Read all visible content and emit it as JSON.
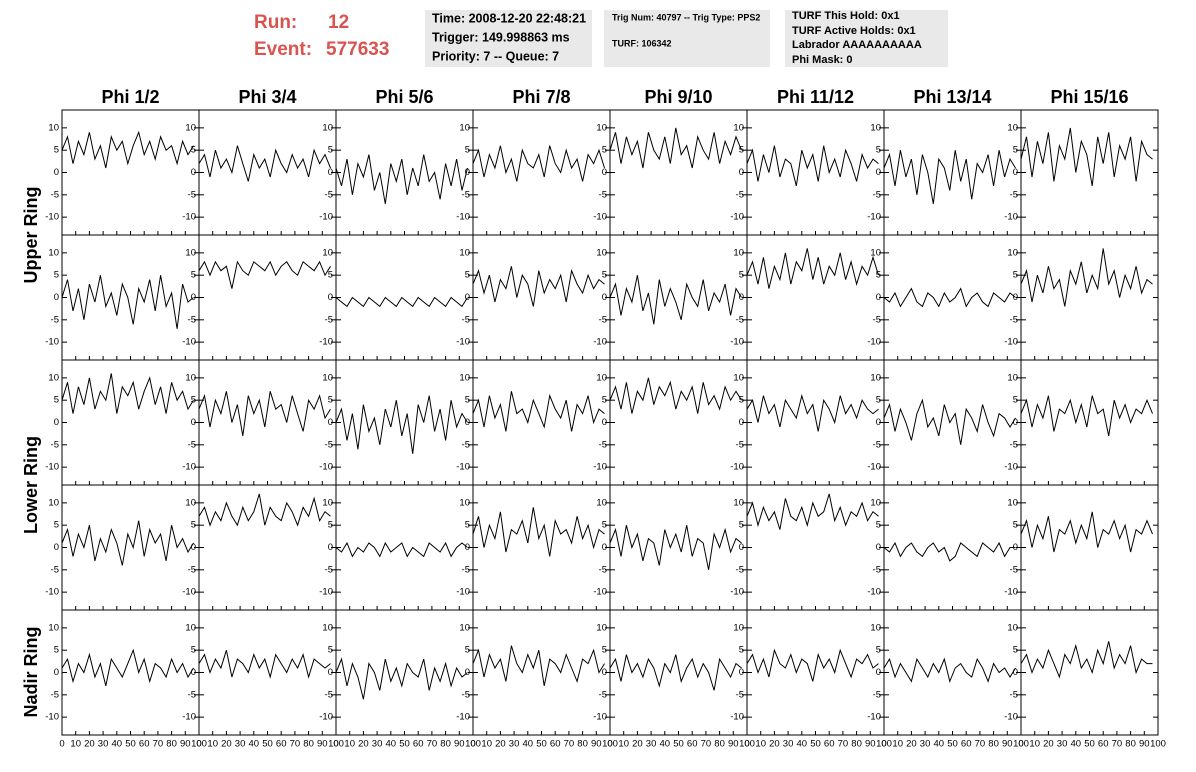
{
  "header": {
    "run_label": "Run:",
    "run": "12",
    "event_label": "Event:",
    "event": "577633",
    "time": "Time: 2008-12-20 22:48:21",
    "trigger": "Trigger: 149.998863 ms",
    "priority": "Priority: 7 -- Queue: 7",
    "trig_num": "Trig Num: 40797 -- Trig Type: PPS2",
    "turf": "TURF: 106342",
    "turf_this_hold": "TURF This Hold: 0x1",
    "turf_active_holds": "TURF Active Holds: 0x1",
    "labrador": "Labrador AAAAAAAAAA",
    "phi_mask": "Phi Mask: 0"
  },
  "grid": {
    "type": "line",
    "columns": [
      "Phi 1/2",
      "Phi 3/4",
      "Phi 5/6",
      "Phi 7/8",
      "Phi 9/10",
      "Phi 11/12",
      "Phi 13/14",
      "Phi 15/16"
    ],
    "ring_labels": [
      "Upper Ring",
      "Lower Ring",
      "Nadir Ring"
    ],
    "x": [
      0,
      4,
      8,
      12,
      16,
      20,
      24,
      28,
      32,
      36,
      40,
      44,
      48,
      52,
      56,
      60,
      64,
      68,
      72,
      76,
      80,
      84,
      88,
      92,
      96
    ],
    "xlim": [
      0,
      100
    ],
    "ylim": [
      -14,
      14
    ],
    "xticks": [
      0,
      10,
      20,
      30,
      40,
      50,
      60,
      70,
      80,
      90,
      100
    ],
    "yticks": [
      -10,
      -5,
      0,
      5,
      10
    ],
    "panels": [
      [
        [
          5,
          8,
          2,
          7,
          4,
          9,
          3,
          6,
          1,
          8,
          5,
          7,
          2,
          6,
          9,
          4,
          7,
          3,
          8,
          5,
          6,
          2,
          7,
          4,
          6
        ],
        [
          2,
          4,
          -1,
          5,
          1,
          3,
          0,
          6,
          2,
          -2,
          4,
          1,
          3,
          -1,
          5,
          2,
          0,
          4,
          1,
          3,
          -1,
          5,
          2,
          4,
          1
        ],
        [
          1,
          -3,
          3,
          -5,
          2,
          -1,
          4,
          -4,
          0,
          -7,
          2,
          -2,
          3,
          -5,
          1,
          -3,
          4,
          -2,
          0,
          -6,
          2,
          -3,
          3,
          -4,
          1
        ],
        [
          2,
          5,
          -1,
          4,
          1,
          6,
          0,
          3,
          -2,
          5,
          2,
          1,
          4,
          -1,
          6,
          2,
          0,
          5,
          1,
          3,
          -2,
          4,
          2,
          5,
          1
        ],
        [
          5,
          9,
          2,
          8,
          4,
          7,
          1,
          9,
          5,
          3,
          8,
          2,
          10,
          4,
          6,
          1,
          8,
          5,
          3,
          9,
          2,
          7,
          4,
          8,
          5
        ],
        [
          2,
          5,
          -2,
          4,
          0,
          6,
          -1,
          3,
          2,
          -3,
          5,
          1,
          4,
          -2,
          6,
          0,
          3,
          -1,
          5,
          2,
          -2,
          4,
          1,
          3,
          2
        ],
        [
          1,
          4,
          -3,
          5,
          -1,
          3,
          -5,
          4,
          0,
          -7,
          3,
          1,
          -4,
          5,
          -2,
          3,
          -6,
          2,
          0,
          4,
          -3,
          5,
          -1,
          3,
          1
        ],
        [
          3,
          8,
          -1,
          7,
          2,
          9,
          -2,
          6,
          3,
          10,
          0,
          7,
          4,
          -3,
          8,
          2,
          9,
          -1,
          6,
          3,
          8,
          -2,
          7,
          4,
          3
        ]
      ],
      [
        [
          0,
          4,
          -3,
          2,
          -5,
          3,
          -1,
          5,
          -2,
          1,
          -4,
          3,
          0,
          -6,
          2,
          -1,
          4,
          -3,
          5,
          -2,
          1,
          -7,
          3,
          -1,
          0
        ],
        [
          6,
          8,
          5,
          8,
          6,
          7,
          2,
          8,
          6,
          5,
          8,
          7,
          6,
          8,
          5,
          7,
          8,
          6,
          5,
          8,
          7,
          6,
          8,
          5,
          7
        ],
        [
          0,
          -1,
          -2,
          0,
          -1,
          -2,
          0,
          -1,
          -2,
          0,
          -1,
          -2,
          0,
          -1,
          -2,
          0,
          -1,
          -2,
          0,
          -1,
          -2,
          0,
          -1,
          -2,
          0
        ],
        [
          3,
          6,
          1,
          5,
          -1,
          4,
          2,
          7,
          0,
          5,
          3,
          -2,
          6,
          1,
          4,
          2,
          5,
          -1,
          6,
          3,
          1,
          5,
          2,
          4,
          3
        ],
        [
          0,
          3,
          -4,
          2,
          -1,
          5,
          -3,
          1,
          -6,
          4,
          -2,
          2,
          -1,
          -5,
          3,
          0,
          -2,
          4,
          -3,
          1,
          -1,
          3,
          -4,
          2,
          0
        ],
        [
          5,
          8,
          3,
          9,
          2,
          7,
          4,
          10,
          3,
          8,
          6,
          11,
          4,
          9,
          3,
          7,
          5,
          10,
          4,
          8,
          3,
          7,
          5,
          9,
          5
        ],
        [
          0,
          -1,
          1,
          -2,
          0,
          2,
          -1,
          -2,
          1,
          0,
          -2,
          1,
          -1,
          0,
          2,
          -2,
          0,
          1,
          -1,
          -2,
          1,
          0,
          -1,
          1,
          0
        ],
        [
          3,
          6,
          -1,
          5,
          1,
          7,
          2,
          4,
          -2,
          6,
          3,
          8,
          1,
          5,
          2,
          11,
          3,
          6,
          0,
          5,
          2,
          7,
          1,
          4,
          3
        ]
      ],
      [
        [
          5,
          9,
          2,
          8,
          4,
          10,
          3,
          7,
          5,
          11,
          2,
          8,
          6,
          9,
          3,
          7,
          10,
          4,
          8,
          2,
          9,
          5,
          7,
          3,
          5
        ],
        [
          3,
          6,
          -1,
          5,
          2,
          7,
          0,
          4,
          -3,
          6,
          2,
          5,
          -1,
          7,
          3,
          4,
          0,
          6,
          2,
          -2,
          5,
          3,
          6,
          1,
          3
        ],
        [
          0,
          3,
          -4,
          2,
          -6,
          4,
          -2,
          1,
          -5,
          3,
          -1,
          5,
          -3,
          2,
          -7,
          4,
          0,
          6,
          -2,
          3,
          -4,
          5,
          -1,
          2,
          0
        ],
        [
          2,
          5,
          -1,
          6,
          1,
          4,
          -2,
          7,
          2,
          3,
          0,
          5,
          2,
          -1,
          6,
          3,
          1,
          5,
          -2,
          4,
          2,
          6,
          0,
          3,
          2
        ],
        [
          5,
          8,
          3,
          9,
          2,
          7,
          5,
          10,
          4,
          8,
          6,
          9,
          3,
          7,
          5,
          8,
          2,
          9,
          4,
          6,
          3,
          8,
          5,
          7,
          5
        ],
        [
          3,
          5,
          0,
          6,
          2,
          4,
          -1,
          5,
          3,
          1,
          6,
          2,
          4,
          -2,
          5,
          3,
          0,
          6,
          2,
          4,
          1,
          5,
          3,
          2,
          3
        ],
        [
          1,
          4,
          -2,
          3,
          0,
          -4,
          2,
          5,
          -1,
          1,
          -3,
          4,
          0,
          2,
          -5,
          3,
          1,
          -2,
          4,
          0,
          -3,
          2,
          1,
          -1,
          1
        ],
        [
          2,
          5,
          -1,
          4,
          1,
          6,
          -2,
          3,
          2,
          5,
          0,
          4,
          -1,
          6,
          2,
          3,
          -3,
          5,
          1,
          4,
          0,
          3,
          2,
          5,
          2
        ]
      ],
      [
        [
          1,
          4,
          -2,
          3,
          0,
          5,
          -3,
          2,
          -1,
          4,
          1,
          -4,
          3,
          0,
          6,
          -2,
          4,
          1,
          3,
          -3,
          5,
          0,
          2,
          -1,
          1
        ],
        [
          7,
          9,
          5,
          8,
          6,
          10,
          7,
          5,
          9,
          6,
          8,
          12,
          5,
          9,
          7,
          6,
          10,
          8,
          5,
          9,
          7,
          11,
          6,
          8,
          7
        ],
        [
          0,
          -1,
          1,
          -2,
          0,
          -1,
          1,
          0,
          -2,
          1,
          -1,
          0,
          1,
          -2,
          0,
          -1,
          -2,
          1,
          0,
          -1,
          1,
          -2,
          0,
          1,
          0
        ],
        [
          3,
          7,
          0,
          5,
          2,
          8,
          -1,
          4,
          3,
          6,
          1,
          9,
          2,
          5,
          -2,
          6,
          3,
          4,
          1,
          7,
          2,
          5,
          0,
          4,
          3
        ],
        [
          1,
          4,
          -2,
          5,
          0,
          3,
          -3,
          2,
          1,
          -4,
          4,
          0,
          3,
          -1,
          5,
          -2,
          2,
          1,
          -5,
          3,
          0,
          4,
          -1,
          2,
          1
        ],
        [
          7,
          10,
          5,
          9,
          6,
          8,
          4,
          11,
          7,
          6,
          9,
          5,
          10,
          7,
          8,
          12,
          6,
          9,
          5,
          8,
          7,
          10,
          6,
          8,
          7
        ],
        [
          0,
          -1,
          1,
          -2,
          0,
          1,
          -1,
          -2,
          0,
          1,
          -1,
          0,
          -3,
          -2,
          1,
          0,
          -1,
          -2,
          1,
          0,
          -1,
          1,
          -2,
          0,
          0
        ],
        [
          3,
          6,
          0,
          5,
          2,
          7,
          -1,
          4,
          3,
          6,
          1,
          5,
          2,
          8,
          0,
          4,
          3,
          6,
          2,
          5,
          -1,
          4,
          3,
          6,
          3
        ]
      ],
      [
        [
          1,
          3,
          -2,
          2,
          0,
          4,
          -1,
          2,
          -3,
          3,
          1,
          -1,
          2,
          5,
          0,
          3,
          -2,
          2,
          1,
          -1,
          3,
          0,
          2,
          -1,
          1
        ],
        [
          2,
          4,
          0,
          3,
          1,
          5,
          -1,
          3,
          2,
          0,
          4,
          1,
          3,
          -1,
          4,
          2,
          0,
          3,
          1,
          4,
          -1,
          3,
          2,
          1,
          2
        ],
        [
          0,
          3,
          -3,
          2,
          -1,
          -6,
          2,
          0,
          -4,
          3,
          -2,
          1,
          -3,
          2,
          0,
          -1,
          3,
          -4,
          1,
          -2,
          2,
          -3,
          1,
          -1,
          0
        ],
        [
          2,
          5,
          -1,
          4,
          1,
          3,
          -2,
          6,
          2,
          0,
          4,
          1,
          5,
          -3,
          3,
          2,
          0,
          4,
          1,
          -2,
          3,
          2,
          5,
          0,
          2
        ],
        [
          1,
          3,
          -2,
          4,
          0,
          2,
          -1,
          3,
          1,
          -3,
          2,
          0,
          4,
          -2,
          1,
          3,
          -1,
          2,
          0,
          -4,
          3,
          1,
          -1,
          2,
          1
        ],
        [
          2,
          4,
          0,
          3,
          -1,
          5,
          2,
          1,
          4,
          0,
          3,
          2,
          -2,
          4,
          1,
          3,
          0,
          5,
          2,
          -1,
          3,
          2,
          4,
          1,
          2
        ],
        [
          1,
          3,
          -1,
          2,
          0,
          -2,
          3,
          1,
          -1,
          2,
          0,
          3,
          -2,
          1,
          2,
          0,
          -1,
          3,
          1,
          -2,
          2,
          0,
          1,
          -1,
          1
        ],
        [
          2,
          4,
          0,
          3,
          1,
          5,
          2,
          -1,
          4,
          2,
          6,
          1,
          3,
          0,
          5,
          2,
          7,
          1,
          4,
          2,
          6,
          0,
          3,
          2,
          2
        ]
      ]
    ]
  }
}
